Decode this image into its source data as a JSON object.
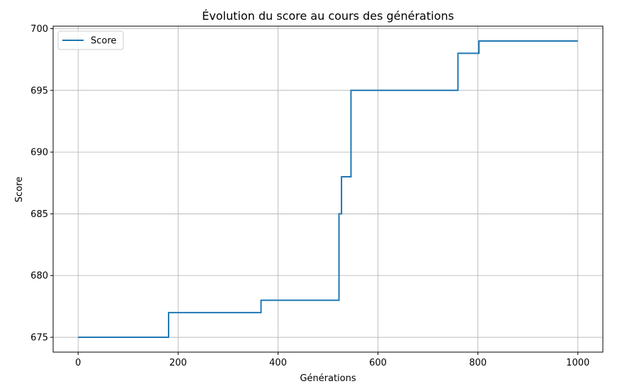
{
  "chart_data": {
    "type": "line",
    "title": "Évolution du score au cours des générations",
    "xlabel": "Générations",
    "ylabel": "Score",
    "xlim": [
      -50,
      1050
    ],
    "ylim": [
      673.8,
      700.2
    ],
    "xticks": [
      0,
      200,
      400,
      600,
      800,
      1000
    ],
    "yticks": [
      675,
      680,
      685,
      690,
      695,
      700
    ],
    "grid": true,
    "legend_position": "top-left",
    "series": [
      {
        "name": "Score",
        "color": "#1f77b4",
        "step": "post",
        "x": [
          0,
          181,
          366,
          522,
          527,
          546,
          760,
          802,
          1000
        ],
        "y": [
          675,
          677,
          678,
          685,
          688,
          695,
          698,
          699,
          699
        ]
      }
    ]
  }
}
